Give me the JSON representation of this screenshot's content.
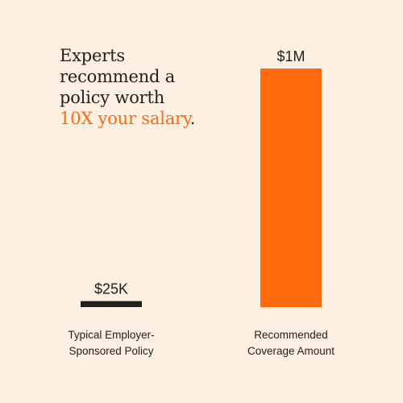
{
  "headline": {
    "line1": "Experts",
    "line2": "recommend a",
    "line3": "policy worth",
    "highlight": "10X your salary",
    "end": "."
  },
  "colors": {
    "background": "#fdf0e3",
    "text": "#1f1f1f",
    "accent": "#ff6a0d"
  },
  "chart_data": {
    "type": "bar",
    "categories": [
      [
        "Typical Employer-",
        "Sponsored Policy"
      ],
      [
        "Recommended",
        "Coverage Amount"
      ]
    ],
    "values": [
      25000,
      1000000
    ],
    "value_labels": [
      "$25K",
      "$1M"
    ],
    "bar_colors": [
      "#1f1f1f",
      "#ff6a0d"
    ],
    "title": "",
    "xlabel": "",
    "ylabel": "",
    "ylim": [
      0,
      1000000
    ],
    "grid": false
  }
}
